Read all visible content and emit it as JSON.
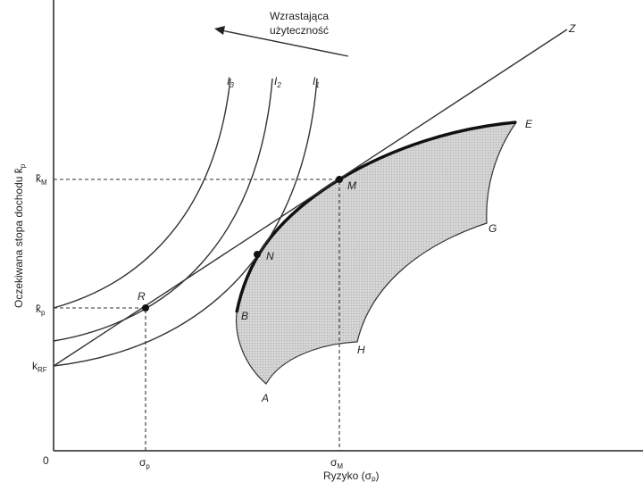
{
  "header": {
    "utility_line1": "Wzrastająca",
    "utility_line2": "użyteczność"
  },
  "axes": {
    "y_label": {
      "text": "Oczekiwana stopa dochodu k̂",
      "sub": "p"
    },
    "x_label": {
      "text": "Ryzyko (σ",
      "sub": "p",
      "end": ")"
    },
    "origin": "0",
    "y_ticks": [
      {
        "text": "k̂",
        "sub": "M"
      },
      {
        "text": "k̂",
        "sub": "p"
      },
      {
        "text": "k",
        "sub": "RF"
      }
    ],
    "x_ticks": [
      {
        "text": "σ",
        "sub": "p"
      },
      {
        "text": "σ",
        "sub": "M"
      }
    ]
  },
  "curves": [
    {
      "text": "I",
      "sub": "3"
    },
    {
      "text": "I",
      "sub": "2"
    },
    {
      "text": "I",
      "sub": "1"
    }
  ],
  "points": {
    "Z": "Z",
    "E": "E",
    "G": "G",
    "H": "H",
    "A": "A",
    "B": "B",
    "N": "N",
    "M": "M",
    "R": "R"
  }
}
